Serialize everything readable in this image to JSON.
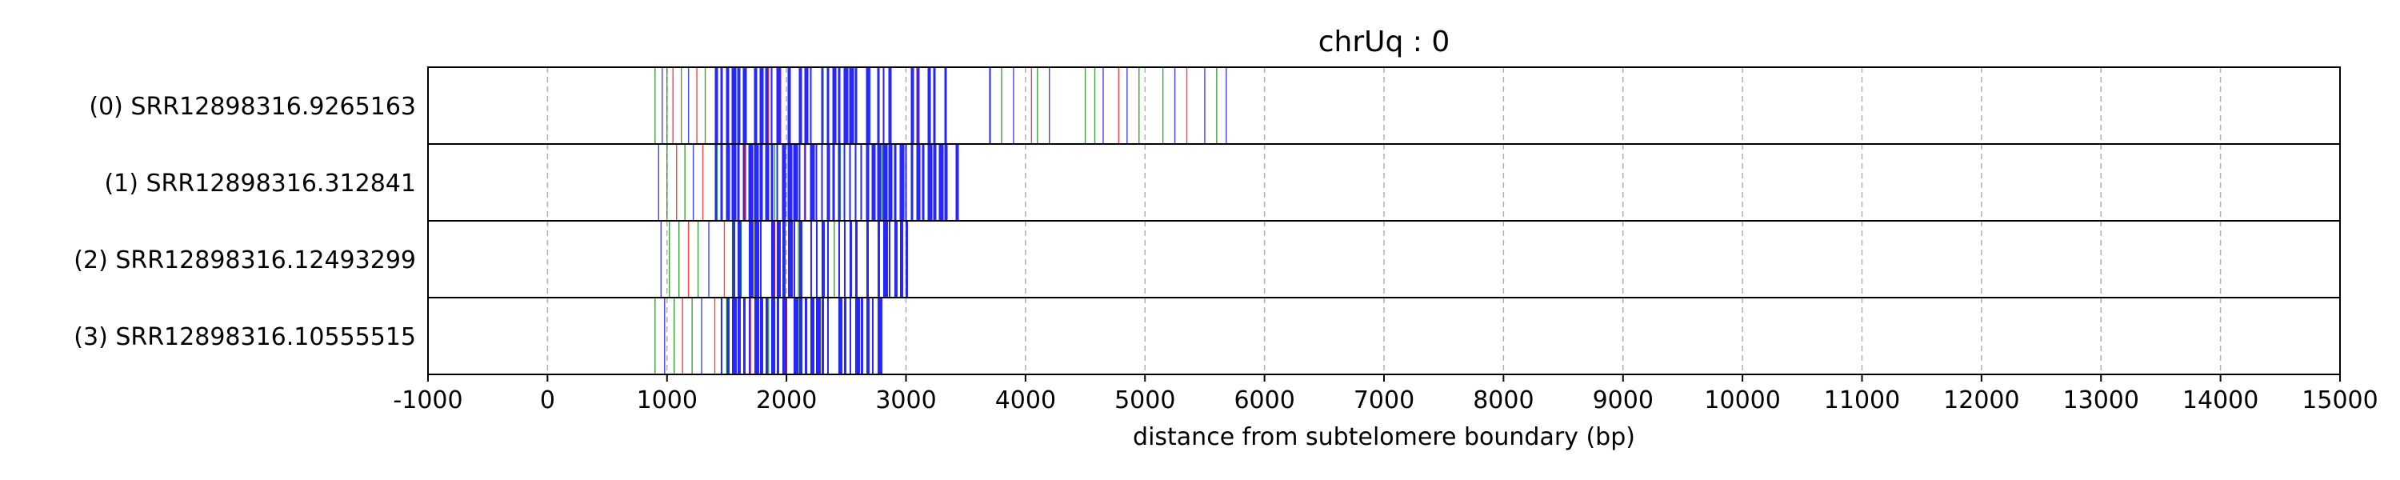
{
  "chart_data": {
    "type": "multi-track barcode",
    "title": "chrUq : 0",
    "xlabel": "distance from subtelomere boundary (bp)",
    "xlim": [
      -1000,
      15000
    ],
    "xticks": [
      -1000,
      0,
      1000,
      2000,
      3000,
      4000,
      5000,
      6000,
      7000,
      8000,
      9000,
      10000,
      11000,
      12000,
      13000,
      14000,
      15000
    ],
    "grid": "vertical dashed",
    "tracks": [
      {
        "label": "(0) SRR12898316.9265163",
        "extent": [
          900,
          5700
        ],
        "dense_range": [
          1400,
          3700
        ],
        "dense_color": "#0000ff",
        "dense_density": 0.6,
        "marks": [
          {
            "x": 900,
            "color": "#008000"
          },
          {
            "x": 960,
            "color": "#0000ff"
          },
          {
            "x": 1000,
            "color": "#008000"
          },
          {
            "x": 1050,
            "color": "#ff0000"
          },
          {
            "x": 1120,
            "color": "#008000"
          },
          {
            "x": 1180,
            "color": "#0000ff"
          },
          {
            "x": 1250,
            "color": "#ff0000"
          },
          {
            "x": 1320,
            "color": "#008000"
          },
          {
            "x": 1600,
            "color": "#008000"
          },
          {
            "x": 1850,
            "color": "#ff0000"
          },
          {
            "x": 1950,
            "color": "#ff0000"
          },
          {
            "x": 2300,
            "color": "#008000"
          },
          {
            "x": 2700,
            "color": "#008000"
          },
          {
            "x": 3100,
            "color": "#ff0000"
          },
          {
            "x": 3800,
            "color": "#008000"
          },
          {
            "x": 3900,
            "color": "#0000ff"
          },
          {
            "x": 4050,
            "color": "#ff0000"
          },
          {
            "x": 4100,
            "color": "#008000"
          },
          {
            "x": 4200,
            "color": "#0000ff"
          },
          {
            "x": 4500,
            "color": "#008000"
          },
          {
            "x": 4580,
            "color": "#008000"
          },
          {
            "x": 4650,
            "color": "#0000ff"
          },
          {
            "x": 4780,
            "color": "#ff0000"
          },
          {
            "x": 4850,
            "color": "#0000ff"
          },
          {
            "x": 4950,
            "color": "#008000"
          },
          {
            "x": 5150,
            "color": "#008000"
          },
          {
            "x": 5250,
            "color": "#0000ff"
          },
          {
            "x": 5350,
            "color": "#ff0000"
          },
          {
            "x": 5500,
            "color": "#0000ff"
          },
          {
            "x": 5600,
            "color": "#008000"
          },
          {
            "x": 5680,
            "color": "#0000ff"
          }
        ]
      },
      {
        "label": "(1) SRR12898316.312841",
        "extent": [
          930,
          3450
        ],
        "dense_range": [
          1400,
          3450
        ],
        "dense_color": "#0000ff",
        "dense_density": 0.9,
        "marks": [
          {
            "x": 930,
            "color": "#0000ff"
          },
          {
            "x": 1000,
            "color": "#008000"
          },
          {
            "x": 1080,
            "color": "#ff0000"
          },
          {
            "x": 1150,
            "color": "#008000"
          },
          {
            "x": 1220,
            "color": "#0000ff"
          },
          {
            "x": 1300,
            "color": "#ff0000"
          },
          {
            "x": 1420,
            "color": "#008000"
          },
          {
            "x": 1650,
            "color": "#ff0000"
          },
          {
            "x": 1900,
            "color": "#008000"
          },
          {
            "x": 2150,
            "color": "#ff0000"
          },
          {
            "x": 2450,
            "color": "#008000"
          },
          {
            "x": 2800,
            "color": "#008000"
          }
        ]
      },
      {
        "label": "(2) SRR12898316.12493299",
        "extent": [
          950,
          3000
        ],
        "dense_range": [
          1450,
          3000
        ],
        "dense_color": "#0000ff",
        "dense_density": 0.8,
        "marks": [
          {
            "x": 950,
            "color": "#0000ff"
          },
          {
            "x": 1020,
            "color": "#008000"
          },
          {
            "x": 1100,
            "color": "#008000"
          },
          {
            "x": 1180,
            "color": "#ff0000"
          },
          {
            "x": 1260,
            "color": "#008000"
          },
          {
            "x": 1350,
            "color": "#0000ff"
          },
          {
            "x": 1480,
            "color": "#ff0000"
          },
          {
            "x": 1550,
            "color": "#008000"
          },
          {
            "x": 1620,
            "color": "#008000"
          },
          {
            "x": 1900,
            "color": "#ff0000"
          },
          {
            "x": 2100,
            "color": "#008000"
          },
          {
            "x": 2400,
            "color": "#008000"
          }
        ]
      },
      {
        "label": "(3) SRR12898316.10555515",
        "extent": [
          900,
          2800
        ],
        "dense_range": [
          1450,
          2800
        ],
        "dense_color": "#0000ff",
        "dense_density": 0.85,
        "marks": [
          {
            "x": 900,
            "color": "#008000"
          },
          {
            "x": 980,
            "color": "#0000ff"
          },
          {
            "x": 1060,
            "color": "#008000"
          },
          {
            "x": 1130,
            "color": "#ff0000"
          },
          {
            "x": 1210,
            "color": "#008000"
          },
          {
            "x": 1290,
            "color": "#0000ff"
          },
          {
            "x": 1400,
            "color": "#ff0000"
          },
          {
            "x": 1500,
            "color": "#008000"
          },
          {
            "x": 1700,
            "color": "#ff0000"
          },
          {
            "x": 1850,
            "color": "#008000"
          },
          {
            "x": 2000,
            "color": "#ff0000"
          },
          {
            "x": 2100,
            "color": "#008000"
          }
        ]
      }
    ]
  }
}
